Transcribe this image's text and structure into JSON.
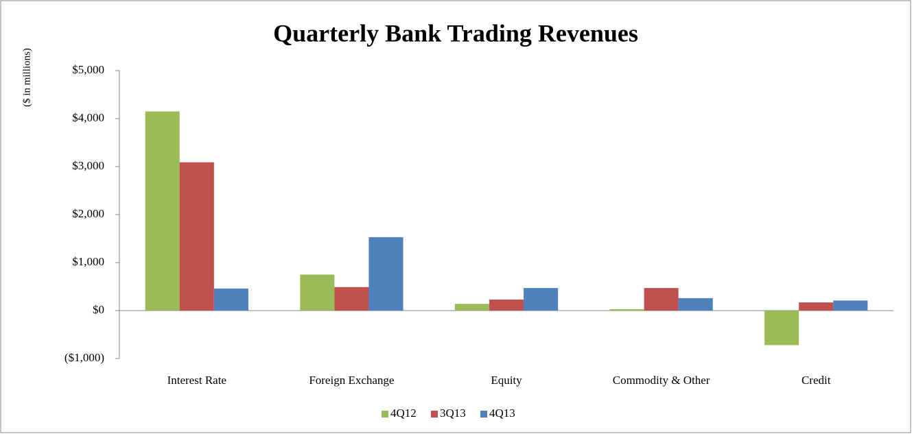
{
  "chart_data": {
    "type": "bar",
    "title": "Quarterly Bank Trading Revenues",
    "y_label": "($ in millions)",
    "categories": [
      "Interest Rate",
      "Foreign Exchange",
      "Equity",
      "Commodity & Other",
      "Credit"
    ],
    "series": [
      {
        "name": "4Q12",
        "color": "#9bbb59",
        "values": [
          4150,
          750,
          140,
          30,
          -720
        ]
      },
      {
        "name": "3Q13",
        "color": "#c0504d",
        "values": [
          3090,
          490,
          230,
          470,
          170
        ]
      },
      {
        "name": "4Q13",
        "color": "#4f81bd",
        "values": [
          460,
          1530,
          470,
          260,
          210
        ]
      }
    ],
    "ylim": [
      -1000,
      5000
    ],
    "yticks": [
      {
        "value": -1000,
        "label": "($1,000)"
      },
      {
        "value": 0,
        "label": "$0"
      },
      {
        "value": 1000,
        "label": "$1,000"
      },
      {
        "value": 2000,
        "label": "$2,000"
      },
      {
        "value": 3000,
        "label": "$3,000"
      },
      {
        "value": 4000,
        "label": "$4,000"
      },
      {
        "value": 5000,
        "label": "$5,000"
      }
    ],
    "negative_label_color": "#ff0000",
    "grid": false,
    "legend": "bottom"
  }
}
